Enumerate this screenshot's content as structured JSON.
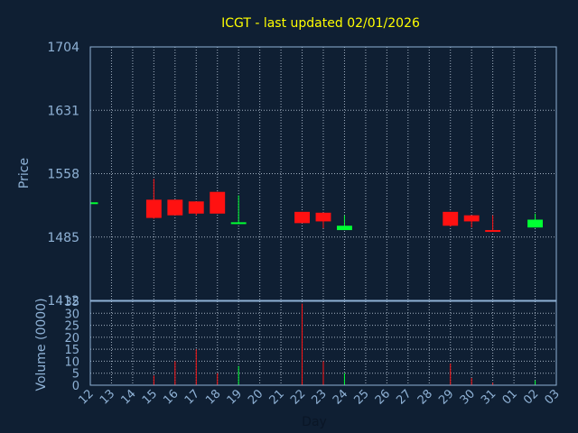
{
  "chart_data": {
    "type": "candlestick",
    "title": "ICGT - last updated 02/01/2026",
    "price_axis": {
      "ylabel": "Price",
      "ylim": [
        1412,
        1704
      ],
      "yticks": [
        1704,
        1631,
        1558,
        1485,
        1412
      ]
    },
    "volume_axis": {
      "ylabel": "Volume (0000)",
      "ylim": [
        0,
        35
      ],
      "yticks": [
        35,
        30,
        25,
        20,
        15,
        10,
        5,
        0
      ]
    },
    "xlabel": "Day",
    "x_ticks": [
      "12",
      "13",
      "14",
      "15",
      "16",
      "17",
      "18",
      "19",
      "20",
      "21",
      "22",
      "23",
      "24",
      "25",
      "26",
      "27",
      "28",
      "29",
      "30",
      "31",
      "01",
      "02",
      "03"
    ],
    "candles": [
      {
        "day": "12",
        "open": 1525,
        "high": 1525,
        "low": 1525,
        "close": 1525,
        "volume": 0
      },
      {
        "day": "15",
        "open": 1528,
        "high": 1552,
        "low": 1506,
        "close": 1507,
        "volume": 4
      },
      {
        "day": "16",
        "open": 1528,
        "high": 1528,
        "low": 1510,
        "close": 1510,
        "volume": 10
      },
      {
        "day": "17",
        "open": 1526,
        "high": 1526,
        "low": 1510,
        "close": 1512,
        "volume": 15
      },
      {
        "day": "18",
        "open": 1537,
        "high": 1537,
        "low": 1512,
        "close": 1512,
        "volume": 5
      },
      {
        "day": "19",
        "open": 1501,
        "high": 1533,
        "low": 1500,
        "close": 1502,
        "volume": 8
      },
      {
        "day": "22",
        "open": 1514,
        "high": 1514,
        "low": 1501,
        "close": 1501,
        "volume": 34
      },
      {
        "day": "23",
        "open": 1513,
        "high": 1513,
        "low": 1495,
        "close": 1503,
        "volume": 10
      },
      {
        "day": "24",
        "open": 1493,
        "high": 1510,
        "low": 1493,
        "close": 1498,
        "volume": 5
      },
      {
        "day": "29",
        "open": 1514,
        "high": 1514,
        "low": 1497,
        "close": 1498,
        "volume": 9
      },
      {
        "day": "30",
        "open": 1510,
        "high": 1510,
        "low": 1496,
        "close": 1503,
        "volume": 3
      },
      {
        "day": "31",
        "open": 1493,
        "high": 1510,
        "low": 1492,
        "close": 1492,
        "volume": 1
      },
      {
        "day": "02",
        "open": 1496,
        "high": 1512,
        "low": 1496,
        "close": 1505,
        "volume": 2
      }
    ],
    "colors": {
      "up": "#00ff33",
      "down": "#ff1111"
    },
    "grid": true
  }
}
